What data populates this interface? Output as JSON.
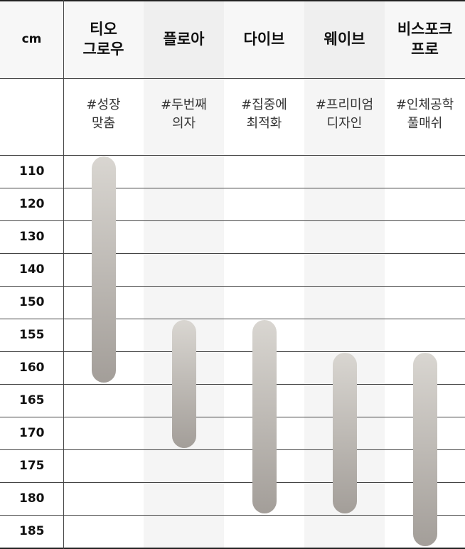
{
  "chart_data": {
    "type": "range-table",
    "unit": "cm",
    "categories": [
      "110",
      "120",
      "130",
      "140",
      "150",
      "155",
      "160",
      "165",
      "170",
      "175",
      "180",
      "185"
    ],
    "products": [
      {
        "name": [
          "티오",
          "그로우"
        ],
        "tag": [
          "#성장",
          "맞춤"
        ],
        "from": "110",
        "to": "160"
      },
      {
        "name": [
          "플로아"
        ],
        "tag": [
          "#두번째",
          "의자"
        ],
        "from": "155",
        "to": "170"
      },
      {
        "name": [
          "다이브"
        ],
        "tag": [
          "#집중에",
          "최적화"
        ],
        "from": "155",
        "to": "180"
      },
      {
        "name": [
          "웨이브"
        ],
        "tag": [
          "#프리미엄",
          "디자인"
        ],
        "from": "160",
        "to": "180"
      },
      {
        "name": [
          "비스포크",
          "프로"
        ],
        "tag": [
          "#인체공학",
          "풀매쉬"
        ],
        "from": "160",
        "to": "185"
      }
    ]
  }
}
